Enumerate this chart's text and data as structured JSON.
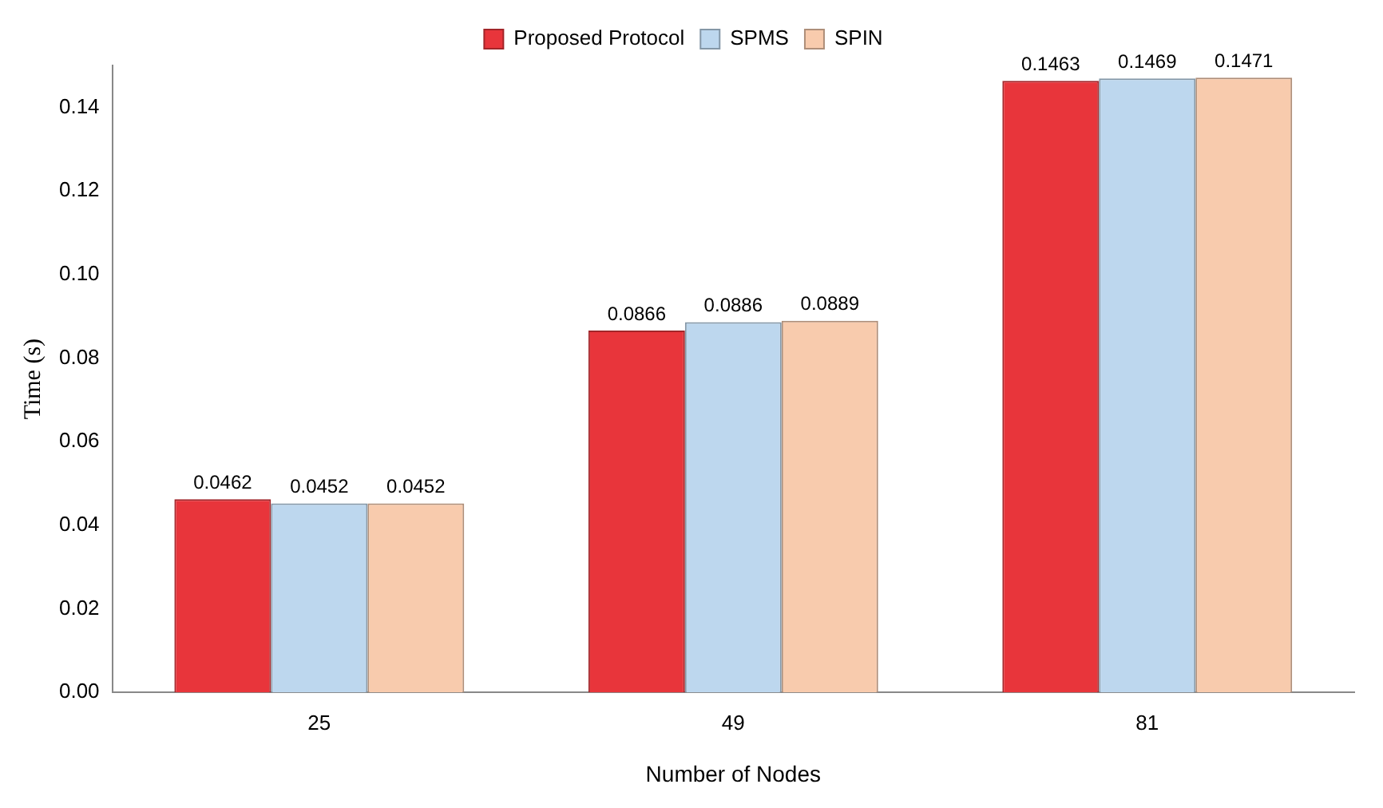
{
  "chart_data": {
    "type": "bar",
    "xlabel": "Number of Nodes",
    "ylabel": "Time (s)",
    "categories": [
      "25",
      "49",
      "81"
    ],
    "series": [
      {
        "name": "Proposed Protocol",
        "color": "#e8353b",
        "values": [
          0.0462,
          0.0866,
          0.1463
        ]
      },
      {
        "name": "SPMS",
        "color": "#bdd7ee",
        "values": [
          0.0452,
          0.0886,
          0.1469
        ]
      },
      {
        "name": "SPIN",
        "color": "#f8cbad",
        "values": [
          0.0452,
          0.0889,
          0.1471
        ]
      }
    ],
    "ylim": [
      0,
      0.15
    ],
    "yticks": [
      {
        "value": 0,
        "label": "0.00"
      },
      {
        "value": 0.02,
        "label": "0.02"
      },
      {
        "value": 0.04,
        "label": "0.04"
      },
      {
        "value": 0.06,
        "label": "0.06"
      },
      {
        "value": 0.08,
        "label": "0.08"
      },
      {
        "value": 0.1,
        "label": "0.10"
      },
      {
        "value": 0.12,
        "label": "0.12"
      },
      {
        "value": 0.14,
        "label": "0.14"
      }
    ],
    "grid": false,
    "legend": "top",
    "data_labels": true
  }
}
